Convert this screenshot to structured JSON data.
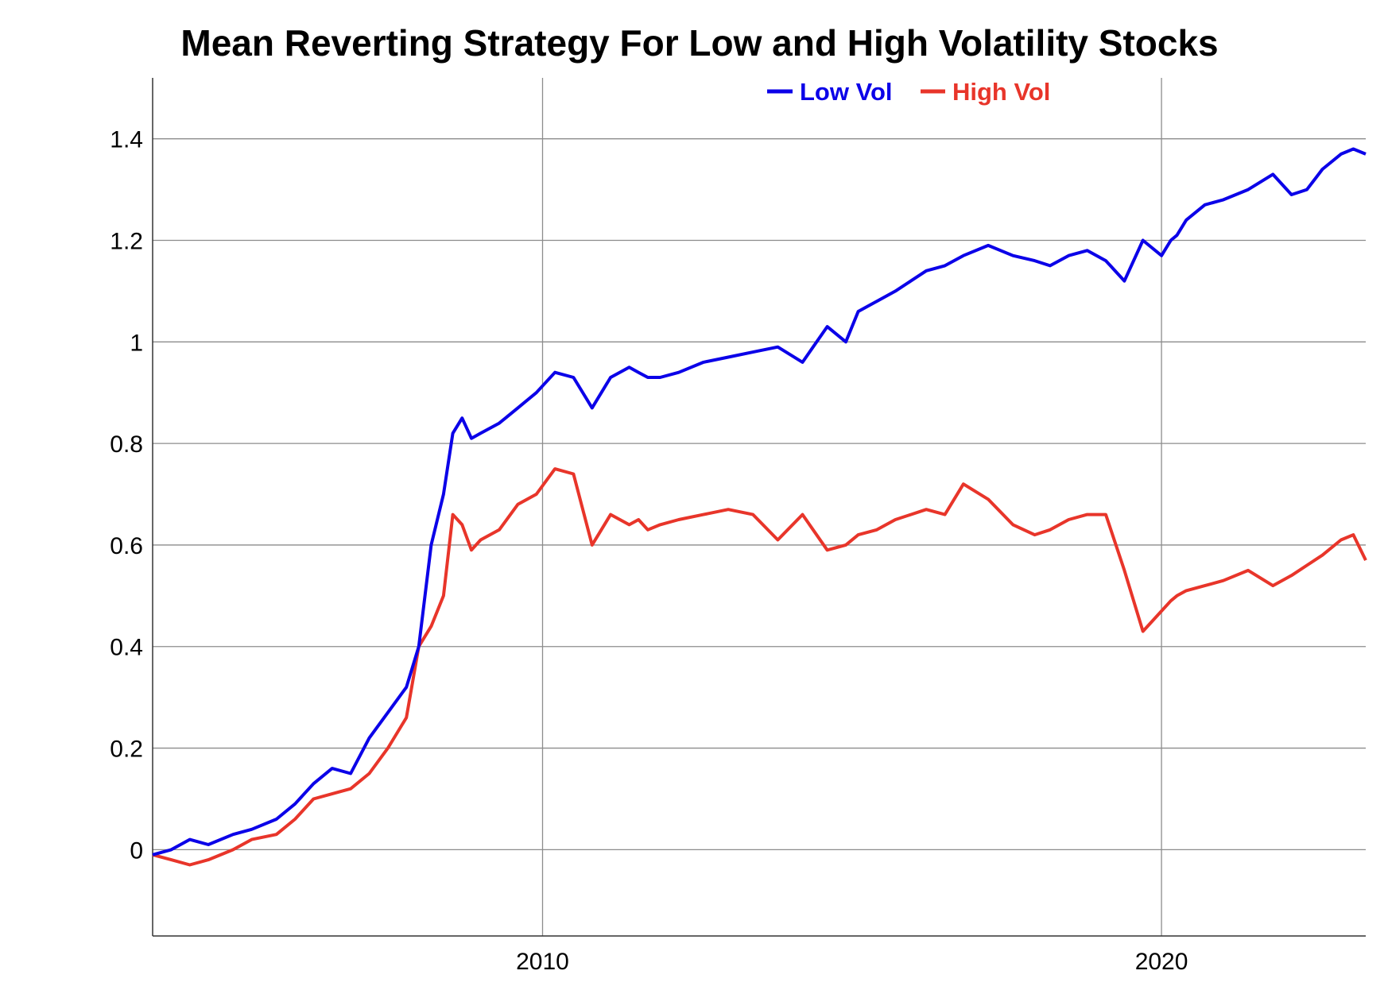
{
  "chart_data": {
    "type": "line",
    "title": "Mean Reverting Strategy For Low and High Volatility Stocks",
    "xlabel": "",
    "ylabel": "",
    "x_ticks": [
      "2010",
      "2020"
    ],
    "y_ticks": [
      "0",
      "0.2",
      "0.4",
      "0.6",
      "0.8",
      "1",
      "1.2",
      "1.4"
    ],
    "xlim": [
      2003.7,
      2023.3
    ],
    "ylim": [
      -0.17,
      1.52
    ],
    "grid": true,
    "legend_position": "top-center",
    "series": [
      {
        "name": "Low Vol",
        "color": "#0b00e8",
        "x": [
          2003.7,
          2004.0,
          2004.3,
          2004.6,
          2005.0,
          2005.3,
          2005.7,
          2006.0,
          2006.3,
          2006.6,
          2006.9,
          2007.2,
          2007.5,
          2007.8,
          2008.0,
          2008.2,
          2008.4,
          2008.55,
          2008.7,
          2008.85,
          2009.0,
          2009.3,
          2009.6,
          2009.9,
          2010.2,
          2010.5,
          2010.8,
          2011.1,
          2011.4,
          2011.55,
          2011.7,
          2011.9,
          2012.2,
          2012.6,
          2013.0,
          2013.4,
          2013.8,
          2014.2,
          2014.6,
          2014.9,
          2015.1,
          2015.4,
          2015.7,
          2015.95,
          2016.2,
          2016.5,
          2016.8,
          2017.2,
          2017.6,
          2017.95,
          2018.2,
          2018.5,
          2018.8,
          2019.1,
          2019.4,
          2019.7,
          2020.0,
          2020.15,
          2020.25,
          2020.4,
          2020.7,
          2021.0,
          2021.4,
          2021.8,
          2022.1,
          2022.35,
          2022.6,
          2022.9,
          2023.1,
          2023.3
        ],
        "y": [
          -0.01,
          0.0,
          0.02,
          0.01,
          0.03,
          0.04,
          0.06,
          0.09,
          0.13,
          0.16,
          0.15,
          0.22,
          0.27,
          0.32,
          0.4,
          0.6,
          0.7,
          0.82,
          0.85,
          0.81,
          0.82,
          0.84,
          0.87,
          0.9,
          0.94,
          0.93,
          0.87,
          0.93,
          0.95,
          0.94,
          0.93,
          0.93,
          0.94,
          0.96,
          0.97,
          0.98,
          0.99,
          0.96,
          1.03,
          1.0,
          1.06,
          1.08,
          1.1,
          1.12,
          1.14,
          1.15,
          1.17,
          1.19,
          1.17,
          1.16,
          1.15,
          1.17,
          1.18,
          1.16,
          1.12,
          1.2,
          1.17,
          1.2,
          1.21,
          1.24,
          1.27,
          1.28,
          1.3,
          1.33,
          1.29,
          1.3,
          1.34,
          1.37,
          1.38,
          1.37
        ]
      },
      {
        "name": "High Vol",
        "color": "#e8352a",
        "x": [
          2003.7,
          2004.0,
          2004.3,
          2004.6,
          2005.0,
          2005.3,
          2005.7,
          2006.0,
          2006.3,
          2006.6,
          2006.9,
          2007.2,
          2007.5,
          2007.8,
          2008.0,
          2008.2,
          2008.4,
          2008.55,
          2008.7,
          2008.85,
          2009.0,
          2009.3,
          2009.6,
          2009.9,
          2010.2,
          2010.5,
          2010.8,
          2011.1,
          2011.4,
          2011.55,
          2011.7,
          2011.9,
          2012.2,
          2012.6,
          2013.0,
          2013.4,
          2013.8,
          2014.2,
          2014.6,
          2014.9,
          2015.1,
          2015.4,
          2015.7,
          2015.95,
          2016.2,
          2016.5,
          2016.8,
          2017.2,
          2017.6,
          2017.95,
          2018.2,
          2018.5,
          2018.8,
          2019.1,
          2019.4,
          2019.7,
          2020.0,
          2020.15,
          2020.25,
          2020.4,
          2020.7,
          2021.0,
          2021.4,
          2021.8,
          2022.1,
          2022.35,
          2022.6,
          2022.9,
          2023.1,
          2023.3
        ],
        "y": [
          -0.01,
          -0.02,
          -0.03,
          -0.02,
          0.0,
          0.02,
          0.03,
          0.06,
          0.1,
          0.11,
          0.12,
          0.15,
          0.2,
          0.26,
          0.4,
          0.44,
          0.5,
          0.66,
          0.64,
          0.59,
          0.61,
          0.63,
          0.68,
          0.7,
          0.75,
          0.74,
          0.6,
          0.66,
          0.64,
          0.65,
          0.63,
          0.64,
          0.65,
          0.66,
          0.67,
          0.66,
          0.61,
          0.66,
          0.59,
          0.6,
          0.62,
          0.63,
          0.65,
          0.66,
          0.67,
          0.66,
          0.72,
          0.69,
          0.64,
          0.62,
          0.63,
          0.65,
          0.66,
          0.66,
          0.55,
          0.43,
          0.47,
          0.49,
          0.5,
          0.51,
          0.52,
          0.53,
          0.55,
          0.52,
          0.54,
          0.56,
          0.58,
          0.61,
          0.62,
          0.57
        ]
      }
    ]
  }
}
